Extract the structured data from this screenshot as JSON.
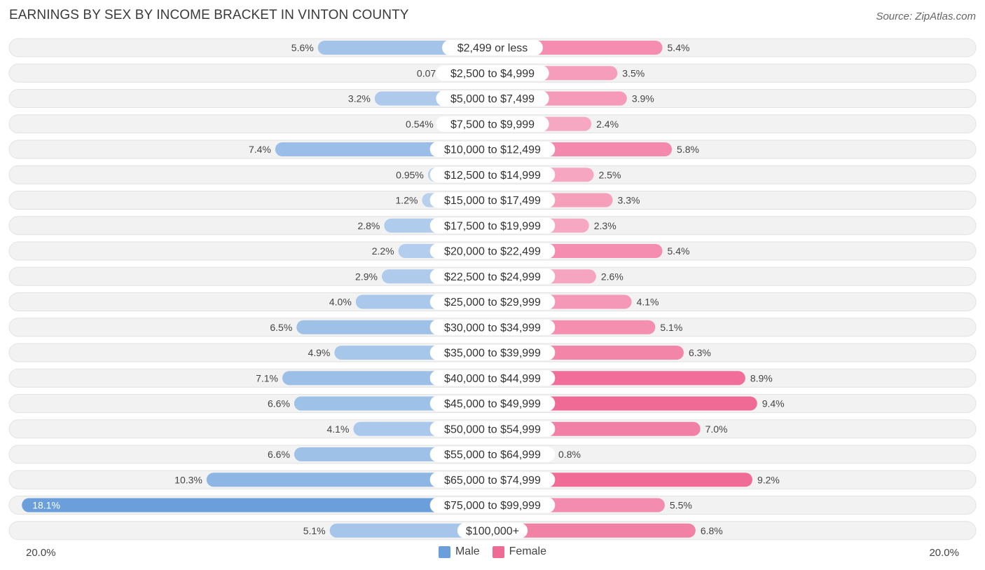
{
  "chart_data": {
    "type": "bar",
    "orientation": "horizontal-diverging",
    "title": "EARNINGS BY SEX BY INCOME BRACKET IN VINTON COUNTY",
    "source": "Source: ZipAtlas.com",
    "categories": [
      "$2,499 or less",
      "$2,500 to $4,999",
      "$5,000 to $7,499",
      "$7,500 to $9,999",
      "$10,000 to $12,499",
      "$12,500 to $14,999",
      "$15,000 to $17,499",
      "$17,500 to $19,999",
      "$20,000 to $22,499",
      "$22,500 to $24,999",
      "$25,000 to $29,999",
      "$30,000 to $34,999",
      "$35,000 to $39,999",
      "$40,000 to $44,999",
      "$45,000 to $49,999",
      "$50,000 to $54,999",
      "$55,000 to $64,999",
      "$65,000 to $74,999",
      "$75,000 to $99,999",
      "$100,000+"
    ],
    "series": [
      {
        "name": "Male",
        "color": "#6a9fdc",
        "values": [
          5.6,
          0.07,
          3.2,
          0.54,
          7.4,
          0.95,
          1.2,
          2.8,
          2.2,
          2.9,
          4.0,
          6.5,
          4.9,
          7.1,
          6.6,
          4.1,
          6.6,
          10.3,
          18.1,
          5.1
        ],
        "labels": [
          "5.6%",
          "0.07%",
          "3.2%",
          "0.54%",
          "7.4%",
          "0.95%",
          "1.2%",
          "2.8%",
          "2.2%",
          "2.9%",
          "4.0%",
          "6.5%",
          "4.9%",
          "7.1%",
          "6.6%",
          "4.1%",
          "6.6%",
          "10.3%",
          "18.1%",
          "5.1%"
        ]
      },
      {
        "name": "Female",
        "color": "#f06a96",
        "values": [
          5.4,
          3.5,
          3.9,
          2.4,
          5.8,
          2.5,
          3.3,
          2.3,
          5.4,
          2.6,
          4.1,
          5.1,
          6.3,
          8.9,
          9.4,
          7.0,
          0.8,
          9.2,
          5.5,
          6.8
        ],
        "labels": [
          "5.4%",
          "3.5%",
          "3.9%",
          "2.4%",
          "5.8%",
          "2.5%",
          "3.3%",
          "2.3%",
          "5.4%",
          "2.6%",
          "4.1%",
          "5.1%",
          "6.3%",
          "8.9%",
          "9.4%",
          "7.0%",
          "0.8%",
          "9.2%",
          "5.5%",
          "6.8%"
        ]
      }
    ],
    "xlim": [
      -20,
      20
    ],
    "axis_labels": {
      "left": "20.0%",
      "right": "20.0%"
    },
    "legend": {
      "position": "bottom-center",
      "items": [
        "Male",
        "Female"
      ]
    }
  }
}
